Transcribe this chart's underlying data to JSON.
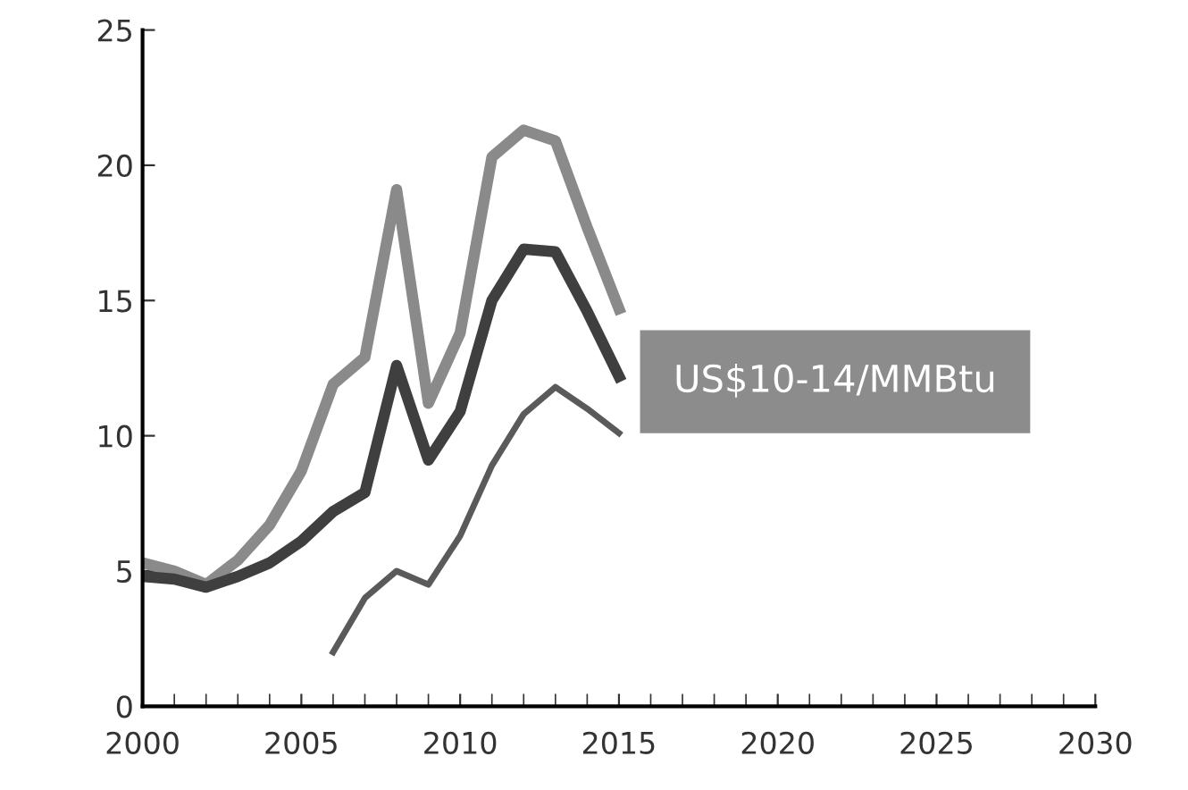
{
  "chart_data": {
    "type": "line",
    "x": [
      2000,
      2001,
      2002,
      2003,
      2004,
      2005,
      2006,
      2007,
      2008,
      2009,
      2010,
      2011,
      2012,
      2013,
      2014,
      2015
    ],
    "series": [
      {
        "color": "#8a8a8a",
        "values": [
          5.3,
          5.0,
          4.5,
          5.4,
          6.7,
          8.7,
          11.9,
          12.9,
          19.1,
          11.2,
          13.8,
          20.3,
          21.3,
          20.9,
          17.7,
          14.7
        ]
      },
      {
        "color": "#3f3f3f",
        "values": [
          4.8,
          4.7,
          4.4,
          4.8,
          5.3,
          6.1,
          7.2,
          7.9,
          12.6,
          9.1,
          10.9,
          15.0,
          16.9,
          16.8,
          14.6,
          12.2
        ]
      },
      {
        "color": "#5a5a5a",
        "values": [
          null,
          null,
          null,
          null,
          null,
          null,
          2.0,
          4.0,
          5.0,
          4.5,
          6.3,
          8.9,
          10.8,
          11.8,
          11.0,
          10.1
        ]
      }
    ],
    "xlim": [
      2000,
      2030
    ],
    "xticks": [
      2000,
      2005,
      2010,
      2015,
      2020,
      2025,
      2030
    ],
    "ylim": [
      0,
      25
    ],
    "yticks": [
      0,
      5,
      10,
      15,
      20,
      25
    ],
    "grid": false,
    "legend": false,
    "marker": "none",
    "line_style": "solid",
    "annotations": [
      {
        "text": "US$10-14/MMBtu",
        "x": 2015,
        "y": 12
      }
    ]
  }
}
